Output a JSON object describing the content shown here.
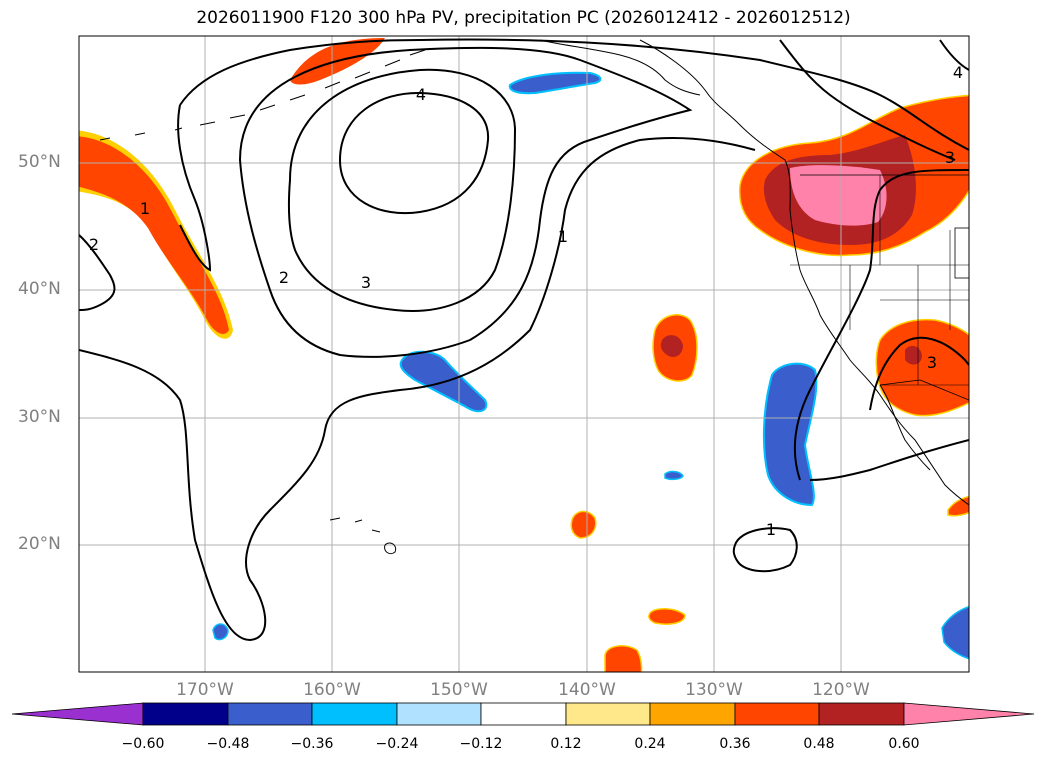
{
  "title": "2026011900 F120 300 hPa PV, precipitation PC (2026012412 - 2026012512)",
  "lat_labels": [
    "50°N",
    "40°N",
    "30°N",
    "20°N"
  ],
  "lon_labels": [
    "170°W",
    "160°W",
    "150°W",
    "140°W",
    "130°W",
    "120°W"
  ],
  "contour_labels": [
    "4",
    "3",
    "2",
    "1",
    "2",
    "1",
    "1",
    "3",
    "3",
    "4"
  ],
  "colorbar": {
    "ticks": [
      "−0.60",
      "−0.48",
      "−0.36",
      "−0.24",
      "−0.12",
      "0.12",
      "0.24",
      "0.36",
      "0.48",
      "0.60"
    ],
    "colors": [
      "#9b30d0",
      "#00008b",
      "#3a5fcd",
      "#00bfff",
      "#b0e2ff",
      "#ffffff",
      "#ffe88a",
      "#ffa500",
      "#ff4500",
      "#b22222",
      "#ff82ab"
    ]
  }
}
